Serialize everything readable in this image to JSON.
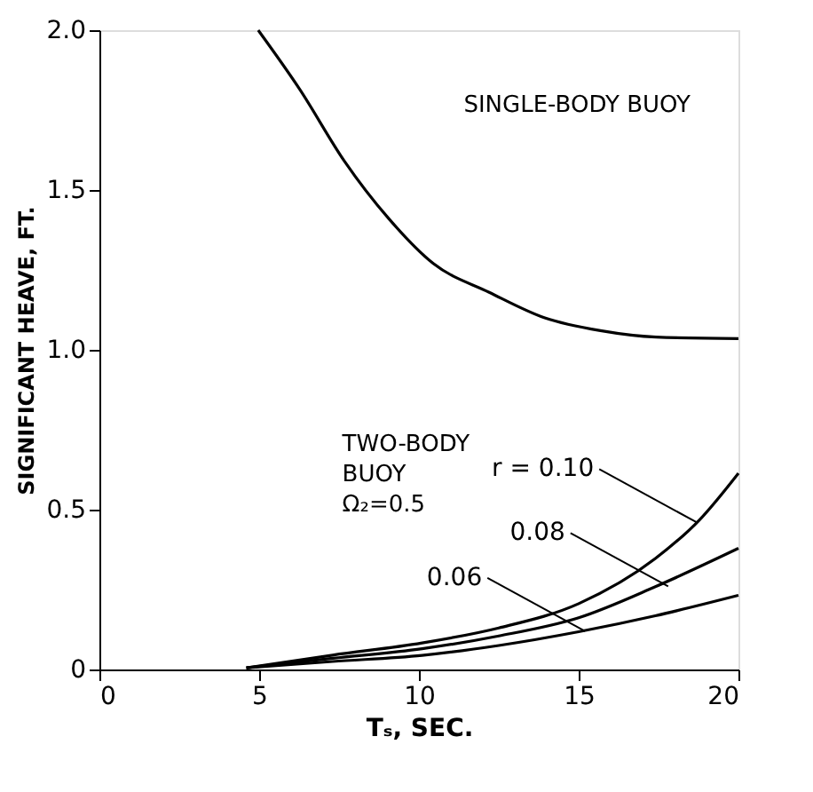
{
  "chart_data": {
    "type": "line",
    "xlabel": "Tₛ, SEC.",
    "ylabel": "SIGNIFICANT HEAVE, FT.",
    "xlim": [
      0,
      20
    ],
    "xticks": [
      0,
      5,
      10,
      15,
      20
    ],
    "ylim": [
      0,
      2.0
    ],
    "yticks": [
      0,
      {
        "value": 0.5,
        "label": "0.5"
      },
      {
        "value": 1.0,
        "label": "1.0"
      },
      {
        "value": 1.5,
        "label": "1.5"
      },
      {
        "value": 2.0,
        "label": "2.0"
      }
    ],
    "grid": false,
    "marker": "none",
    "line_style": "solid",
    "series": [
      {
        "color": "#000000",
        "x": [
          4.97,
          6.27,
          7.67,
          9.06,
          10.45,
          12.2,
          13.94,
          15.68,
          17.42,
          20
        ],
        "values": [
          2.0,
          1.815,
          1.59,
          1.41,
          1.27,
          1.18,
          1.1,
          1.06,
          1.04,
          1.035
        ]
      },
      {
        "color": "#000000",
        "x": [
          4.6,
          7.3,
          10.1,
          12.5,
          15.0,
          17.4,
          18.8,
          20
        ],
        "values": [
          0.005,
          0.045,
          0.083,
          0.13,
          0.206,
          0.347,
          0.47,
          0.614
        ]
      },
      {
        "color": "#000000",
        "x": [
          4.6,
          7.3,
          10.1,
          12.5,
          15.0,
          17.4,
          20
        ],
        "values": [
          0.005,
          0.035,
          0.065,
          0.105,
          0.162,
          0.259,
          0.379
        ]
      },
      {
        "color": "#000000",
        "x": [
          4.6,
          7.3,
          10.1,
          12.5,
          15.0,
          17.4,
          20
        ],
        "values": [
          0.005,
          0.025,
          0.044,
          0.075,
          0.118,
          0.168,
          0.232
        ]
      }
    ],
    "annotations": [
      "SINGLE-BODY BUOY",
      "TWO-BODY\nBUOY\nΩ₂=0.5",
      {
        "text": "r = 0.10",
        "x": 18.7,
        "y": 0.46
      },
      {
        "text": "0.08",
        "x": 17.8,
        "y": 0.26
      },
      {
        "text": "0.06",
        "x": 15.2,
        "y": 0.12
      }
    ]
  }
}
